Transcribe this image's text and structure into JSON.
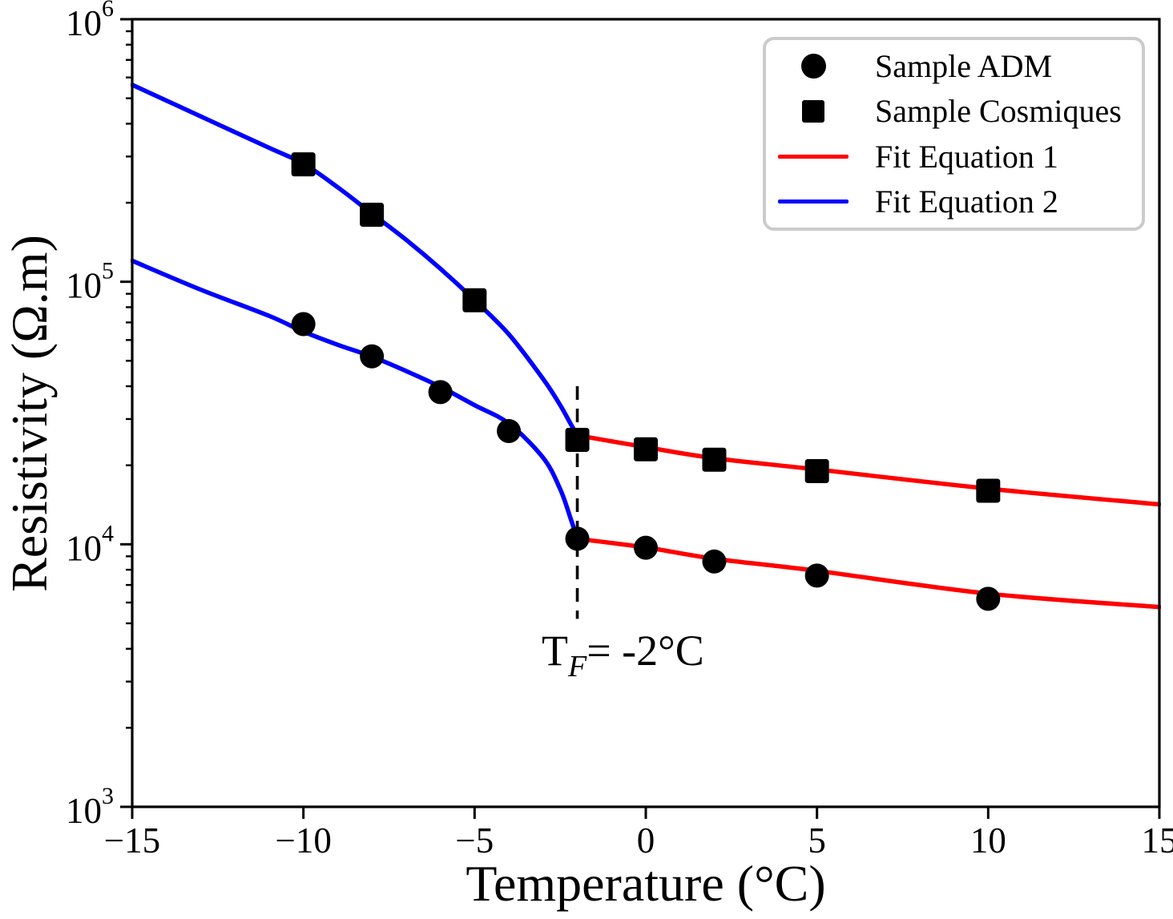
{
  "chart_data": {
    "type": "scatter",
    "title": "",
    "xlabel": "Temperature (°C)",
    "ylabel": "Resistivity (Ω.m)",
    "x_scale": "linear",
    "y_scale": "log",
    "xlim": [
      -15,
      15
    ],
    "ylim": [
      1000,
      1000000
    ],
    "x_ticks": [
      -15,
      -10,
      -5,
      0,
      5,
      10,
      15
    ],
    "y_ticks_exponents": [
      3,
      4,
      5,
      6
    ],
    "grid": false,
    "legend_position": "upper right",
    "colors": {
      "marker": "#000000",
      "fit1": "#ff0000",
      "fit2": "#0000ff",
      "spine": "#000000",
      "legend_border": "#cbcbcb",
      "background": "#ffffff"
    },
    "series": [
      {
        "name": "Sample ADM",
        "marker": "circle",
        "color": "#000000",
        "points": [
          [
            -10,
            69000
          ],
          [
            -8,
            52000
          ],
          [
            -6,
            38000
          ],
          [
            -4,
            27000
          ],
          [
            -2,
            10500
          ],
          [
            0,
            9700
          ],
          [
            2,
            8600
          ],
          [
            5,
            7600
          ],
          [
            10,
            6200
          ]
        ]
      },
      {
        "name": "Sample Cosmiques",
        "marker": "square",
        "color": "#000000",
        "points": [
          [
            -10,
            280000
          ],
          [
            -8,
            180000
          ],
          [
            -5,
            85000
          ],
          [
            -2,
            25000
          ],
          [
            0,
            23000
          ],
          [
            2,
            21000
          ],
          [
            5,
            19000
          ],
          [
            10,
            16000
          ]
        ]
      }
    ],
    "fits": [
      {
        "name": "Fit Equation 2",
        "color": "#0000ff",
        "domain": "T below freezing point",
        "curves": [
          {
            "series": "Sample Cosmiques",
            "points_log10": [
              [
                -15,
                5.75
              ],
              [
                -13,
                5.63
              ],
              [
                -11,
                5.51
              ],
              [
                -10,
                5.45
              ],
              [
                -9,
                5.36
              ],
              [
                -8,
                5.26
              ],
              [
                -7,
                5.16
              ],
              [
                -6,
                5.05
              ],
              [
                -5,
                4.93
              ],
              [
                -4,
                4.8
              ],
              [
                -3,
                4.63
              ],
              [
                -2.5,
                4.53
              ],
              [
                -2.2,
                4.46
              ],
              [
                -2,
                4.415
              ]
            ]
          },
          {
            "series": "Sample ADM",
            "points_log10": [
              [
                -15,
                5.08
              ],
              [
                -13,
                4.97
              ],
              [
                -11,
                4.87
              ],
              [
                -10,
                4.81
              ],
              [
                -9,
                4.76
              ],
              [
                -8,
                4.715
              ],
              [
                -7,
                4.66
              ],
              [
                -6,
                4.6
              ],
              [
                -5,
                4.53
              ],
              [
                -4,
                4.46
              ],
              [
                -3,
                4.33
              ],
              [
                -2.5,
                4.21
              ],
              [
                -2.2,
                4.1
              ],
              [
                -2,
                4.021
              ]
            ]
          }
        ]
      },
      {
        "name": "Fit Equation 1",
        "color": "#ff0000",
        "domain": "T above freezing point",
        "curves": [
          {
            "series": "Sample Cosmiques",
            "points_log10": [
              [
                -2,
                4.415
              ],
              [
                0,
                4.37
              ],
              [
                2,
                4.328
              ],
              [
                5,
                4.285
              ],
              [
                10,
                4.212
              ],
              [
                15,
                4.152
              ]
            ]
          },
          {
            "series": "Sample ADM",
            "points_log10": [
              [
                -2,
                4.021
              ],
              [
                0,
                3.988
              ],
              [
                2,
                3.945
              ],
              [
                5,
                3.899
              ],
              [
                10,
                3.812
              ],
              [
                15,
                3.761
              ]
            ]
          }
        ]
      }
    ],
    "annotation": {
      "x": -2,
      "line_top_value": 40000,
      "line_bottom_value": 5200,
      "label_base": "T",
      "label_sub": "F",
      "label_rest": "= -2°C"
    },
    "legend_items": [
      {
        "marker": "circle",
        "color": "#000000",
        "label": "Sample ADM"
      },
      {
        "marker": "square",
        "color": "#000000",
        "label": "Sample Cosmiques"
      },
      {
        "marker": "line",
        "color": "#ff0000",
        "label": "Fit Equation 1"
      },
      {
        "marker": "line",
        "color": "#0000ff",
        "label": "Fit Equation 2"
      }
    ]
  }
}
